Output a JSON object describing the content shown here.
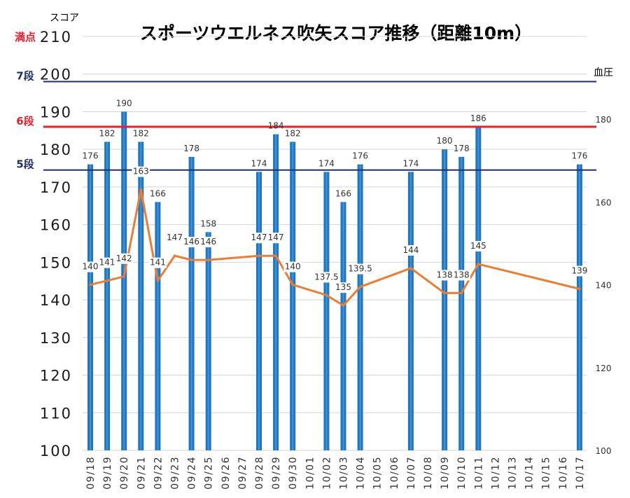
{
  "chart_data": {
    "type": "bar",
    "title": "スポーツウエルネス吹矢スコア推移（距離10m）",
    "ylabel": "スコア",
    "y2label": "血圧",
    "ylim": [
      100,
      210
    ],
    "y2lim": [
      100,
      200
    ],
    "yticks": [
      100,
      110,
      120,
      130,
      140,
      150,
      160,
      170,
      180,
      190,
      200,
      210
    ],
    "y2ticks": [
      100,
      120,
      140,
      160,
      180
    ],
    "categories": [
      "09/18",
      "09/19",
      "09/20",
      "09/21",
      "09/22",
      "09/23",
      "09/24",
      "09/25",
      "09/26",
      "09/27",
      "09/28",
      "09/29",
      "09/30",
      "10/01",
      "10/02",
      "10/03",
      "10/04",
      "10/05",
      "10/06",
      "10/07",
      "10/08",
      "10/09",
      "10/10",
      "10/11",
      "10/12",
      "10/13",
      "10/14",
      "10/15",
      "10/16",
      "10/17"
    ],
    "series": [
      {
        "type": "bar",
        "axis": "left",
        "values": [
          176,
          182,
          190,
          182,
          166,
          null,
          178,
          158,
          null,
          null,
          174,
          184,
          182,
          null,
          174,
          166,
          176,
          null,
          null,
          174,
          null,
          180,
          178,
          186,
          null,
          null,
          null,
          null,
          null,
          176
        ]
      },
      {
        "type": "line",
        "axis": "right",
        "values": [
          140,
          141,
          142,
          163,
          141,
          147,
          146,
          146,
          null,
          null,
          147,
          147,
          140,
          null,
          137.5,
          135,
          139.5,
          null,
          null,
          144,
          null,
          138,
          138,
          145,
          null,
          null,
          null,
          null,
          null,
          139
        ]
      }
    ],
    "reference_lines": [
      {
        "label": "満点",
        "value": 210,
        "color": "#e8202a"
      },
      {
        "label": "7段",
        "value": 198,
        "color": "#1f2d6b"
      },
      {
        "label": "6段",
        "value": 186,
        "color": "#e8202a"
      },
      {
        "label": "5段",
        "value": 174.5,
        "color": "#1f2d6b"
      }
    ],
    "grid": true,
    "colors": {
      "bar": "#1f77c4",
      "line": "#ed7d31"
    }
  }
}
